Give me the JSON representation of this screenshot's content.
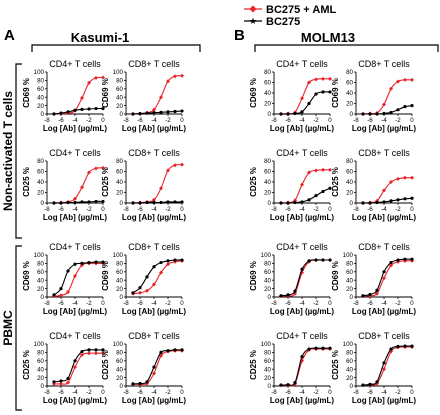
{
  "figure": {
    "panel_a": {
      "letter": "A",
      "title": "Kasumi-1"
    },
    "panel_b": {
      "letter": "B",
      "title": "MOLM13"
    },
    "row_groups": [
      {
        "label": "Non-activated T cells"
      },
      {
        "label": "PBMC"
      }
    ],
    "legend": [
      {
        "label": "BC275 + AML",
        "color": "#e8242b",
        "marker": "diamond"
      },
      {
        "label": "BC275",
        "color": "#000000",
        "marker": "star"
      }
    ]
  },
  "chart_data": [
    {
      "type": "line",
      "panel": "A",
      "row": 1,
      "col": 1,
      "title": "CD4+ T cells",
      "ylabel": "CD69 %",
      "xlabel": "Log [Ab] (µg/mL)",
      "xlim": [
        -8,
        0
      ],
      "ylim": [
        0,
        100
      ],
      "xticks": [
        -8,
        -6,
        -4,
        -2,
        0
      ],
      "yticks": [
        0,
        20,
        40,
        60,
        80,
        100
      ],
      "series": [
        {
          "name": "BC275 + AML",
          "x": [
            -7,
            -6,
            -5,
            -4,
            -3,
            -2,
            -1,
            0
          ],
          "y": [
            0,
            1,
            2,
            8,
            38,
            74,
            86,
            87
          ]
        },
        {
          "name": "BC275",
          "x": [
            -7,
            -6,
            -5,
            -4,
            -3,
            -2,
            -1,
            0
          ],
          "y": [
            0,
            2,
            5,
            9,
            11,
            12,
            13,
            13
          ]
        }
      ]
    },
    {
      "type": "line",
      "panel": "A",
      "row": 1,
      "col": 2,
      "title": "CD8+ T cells",
      "ylabel": "CD69 %",
      "xlabel": "Log [Ab] (µg/mL)",
      "xlim": [
        -8,
        0
      ],
      "ylim": [
        0,
        100
      ],
      "xticks": [
        -8,
        -6,
        -4,
        -2,
        0
      ],
      "yticks": [
        0,
        20,
        40,
        60,
        80,
        100
      ],
      "series": [
        {
          "name": "BC275 + AML",
          "x": [
            -7,
            -6,
            -5,
            -4,
            -3,
            -2,
            -1,
            0
          ],
          "y": [
            0,
            1,
            3,
            10,
            40,
            78,
            90,
            91
          ]
        },
        {
          "name": "BC275",
          "x": [
            -7,
            -6,
            -5,
            -4,
            -3,
            -2,
            -1,
            0
          ],
          "y": [
            0,
            1,
            2,
            3,
            4,
            5,
            6,
            7
          ]
        }
      ]
    },
    {
      "type": "line",
      "panel": "A",
      "row": 2,
      "col": 1,
      "title": "CD4+ T cells",
      "ylabel": "CD25 %",
      "xlabel": "Log [Ab] (µg/mL)",
      "xlim": [
        -8,
        0
      ],
      "ylim": [
        0,
        80
      ],
      "xticks": [
        -8,
        -6,
        -4,
        -2,
        0
      ],
      "yticks": [
        0,
        20,
        40,
        60,
        80
      ],
      "series": [
        {
          "name": "BC275 + AML",
          "x": [
            -7,
            -6,
            -5,
            -4,
            -3,
            -2,
            -1,
            0
          ],
          "y": [
            0,
            1,
            2,
            8,
            30,
            58,
            66,
            67
          ]
        },
        {
          "name": "BC275",
          "x": [
            -7,
            -6,
            -5,
            -4,
            -3,
            -2,
            -1,
            0
          ],
          "y": [
            0,
            0,
            1,
            1,
            2,
            2,
            3,
            3
          ]
        }
      ]
    },
    {
      "type": "line",
      "panel": "A",
      "row": 2,
      "col": 2,
      "title": "CD8+ T cells",
      "ylabel": "CD25 %",
      "xlabel": "Log [Ab] (µg/mL)",
      "xlim": [
        -8,
        0
      ],
      "ylim": [
        0,
        80
      ],
      "xticks": [
        -8,
        -6,
        -4,
        -2,
        0
      ],
      "yticks": [
        0,
        20,
        40,
        60,
        80
      ],
      "series": [
        {
          "name": "BC275 + AML",
          "x": [
            -7,
            -6,
            -5,
            -4,
            -3,
            -2,
            -1,
            0
          ],
          "y": [
            0,
            1,
            2,
            6,
            28,
            62,
            72,
            73
          ]
        },
        {
          "name": "BC275",
          "x": [
            -7,
            -6,
            -5,
            -4,
            -3,
            -2,
            -1,
            0
          ],
          "y": [
            0,
            0,
            1,
            1,
            1,
            2,
            2,
            2
          ]
        }
      ]
    },
    {
      "type": "line",
      "panel": "A",
      "row": 3,
      "col": 1,
      "title": "CD4+ T cells",
      "ylabel": "CD69 %",
      "xlabel": "Log [Ab] (µg/mL)",
      "xlim": [
        -8,
        0
      ],
      "ylim": [
        0,
        100
      ],
      "xticks": [
        -8,
        -6,
        -4,
        -2,
        0
      ],
      "yticks": [
        0,
        20,
        40,
        60,
        80,
        100
      ],
      "series": [
        {
          "name": "BC275 + AML",
          "x": [
            -7,
            -6,
            -5,
            -4,
            -3,
            -2,
            -1,
            0
          ],
          "y": [
            2,
            4,
            12,
            50,
            76,
            80,
            80,
            80
          ]
        },
        {
          "name": "BC275",
          "x": [
            -7,
            -6,
            -5,
            -4,
            -3,
            -2,
            -1,
            0
          ],
          "y": [
            5,
            20,
            62,
            78,
            80,
            82,
            83,
            83
          ]
        }
      ]
    },
    {
      "type": "line",
      "panel": "A",
      "row": 3,
      "col": 2,
      "title": "CD8+ T cells",
      "ylabel": "CD69 %",
      "xlabel": "Log [Ab] (µg/mL)",
      "xlim": [
        -8,
        0
      ],
      "ylim": [
        0,
        100
      ],
      "xticks": [
        -8,
        -6,
        -4,
        -2,
        0
      ],
      "yticks": [
        0,
        20,
        40,
        60,
        80,
        100
      ],
      "series": [
        {
          "name": "BC275 + AML",
          "x": [
            -7,
            -6,
            -5,
            -4,
            -3,
            -2,
            -1,
            0
          ],
          "y": [
            8,
            10,
            15,
            30,
            58,
            78,
            84,
            86
          ]
        },
        {
          "name": "BC275",
          "x": [
            -7,
            -6,
            -5,
            -4,
            -3,
            -2,
            -1,
            0
          ],
          "y": [
            10,
            22,
            48,
            72,
            82,
            86,
            88,
            88
          ]
        }
      ]
    },
    {
      "type": "line",
      "panel": "A",
      "row": 4,
      "col": 1,
      "title": "CD4+ T cells",
      "ylabel": "CD25 %",
      "xlabel": "Log [Ab] (µg/mL)",
      "xlim": [
        -8,
        0
      ],
      "ylim": [
        0,
        100
      ],
      "xticks": [
        -8,
        -6,
        -4,
        -2,
        0
      ],
      "yticks": [
        0,
        20,
        40,
        60,
        80,
        100
      ],
      "series": [
        {
          "name": "BC275 + AML",
          "x": [
            -7,
            -6,
            -5,
            -4,
            -3,
            -2,
            -1,
            0
          ],
          "y": [
            5,
            5,
            8,
            45,
            74,
            78,
            78,
            78
          ]
        },
        {
          "name": "BC275",
          "x": [
            -7,
            -6,
            -5,
            -4,
            -3,
            -2,
            -1,
            0
          ],
          "y": [
            10,
            12,
            18,
            60,
            82,
            86,
            86,
            86
          ]
        }
      ]
    },
    {
      "type": "line",
      "panel": "A",
      "row": 4,
      "col": 2,
      "title": "CD8+ T cells",
      "ylabel": "CD25 %",
      "xlabel": "Log [Ab] (µg/mL)",
      "xlim": [
        -8,
        0
      ],
      "ylim": [
        0,
        100
      ],
      "xticks": [
        -8,
        -6,
        -4,
        -2,
        0
      ],
      "yticks": [
        0,
        20,
        40,
        60,
        80,
        100
      ],
      "series": [
        {
          "name": "BC275 + AML",
          "x": [
            -7,
            -6,
            -5,
            -4,
            -3,
            -2,
            -1,
            0
          ],
          "y": [
            4,
            4,
            6,
            30,
            72,
            82,
            84,
            84
          ]
        },
        {
          "name": "BC275",
          "x": [
            -7,
            -6,
            -5,
            -4,
            -3,
            -2,
            -1,
            0
          ],
          "y": [
            5,
            6,
            10,
            45,
            80,
            84,
            86,
            86
          ]
        }
      ]
    },
    {
      "type": "line",
      "panel": "B",
      "row": 1,
      "col": 1,
      "title": "CD4+ T cells",
      "ylabel": "CD69 %",
      "xlabel": "Log [Ab] (µg/mL)",
      "xlim": [
        -8,
        0
      ],
      "ylim": [
        0,
        80
      ],
      "xticks": [
        -8,
        -6,
        -4,
        -2,
        0
      ],
      "yticks": [
        0,
        20,
        40,
        60,
        80
      ],
      "series": [
        {
          "name": "BC275 + AML",
          "x": [
            -7,
            -6,
            -5,
            -4,
            -3,
            -2,
            -1,
            0
          ],
          "y": [
            0,
            1,
            3,
            30,
            60,
            66,
            67,
            67
          ]
        },
        {
          "name": "BC275",
          "x": [
            -7,
            -6,
            -5,
            -4,
            -3,
            -2,
            -1,
            0
          ],
          "y": [
            0,
            0,
            1,
            4,
            20,
            38,
            42,
            42
          ]
        }
      ]
    },
    {
      "type": "line",
      "panel": "B",
      "row": 1,
      "col": 2,
      "title": "CD8+ T cells",
      "ylabel": "CD69 %",
      "xlabel": "Log [Ab] (µg/mL)",
      "xlim": [
        -8,
        0
      ],
      "ylim": [
        0,
        80
      ],
      "xticks": [
        -8,
        -6,
        -4,
        -2,
        0
      ],
      "yticks": [
        0,
        20,
        40,
        60,
        80
      ],
      "series": [
        {
          "name": "BC275 + AML",
          "x": [
            -7,
            -6,
            -5,
            -4,
            -3,
            -2,
            -1,
            0
          ],
          "y": [
            0,
            1,
            2,
            18,
            48,
            62,
            65,
            65
          ]
        },
        {
          "name": "BC275",
          "x": [
            -7,
            -6,
            -5,
            -4,
            -3,
            -2,
            -1,
            0
          ],
          "y": [
            0,
            0,
            0,
            1,
            3,
            8,
            14,
            16
          ]
        }
      ]
    },
    {
      "type": "line",
      "panel": "B",
      "row": 2,
      "col": 1,
      "title": "CD4+ T cells",
      "ylabel": "CD25 %",
      "xlabel": "Log [Ab] (µg/mL)",
      "xlim": [
        -8,
        0
      ],
      "ylim": [
        0,
        80
      ],
      "xticks": [
        -8,
        -6,
        -4,
        -2,
        0
      ],
      "yticks": [
        0,
        20,
        40,
        60,
        80
      ],
      "series": [
        {
          "name": "BC275 + AML",
          "x": [
            -7,
            -6,
            -5,
            -4,
            -3,
            -2,
            -1,
            0
          ],
          "y": [
            0,
            1,
            5,
            35,
            58,
            62,
            63,
            63
          ]
        },
        {
          "name": "BC275",
          "x": [
            -7,
            -6,
            -5,
            -4,
            -3,
            -2,
            -1,
            0
          ],
          "y": [
            0,
            0,
            1,
            2,
            6,
            14,
            22,
            28
          ]
        }
      ]
    },
    {
      "type": "line",
      "panel": "B",
      "row": 2,
      "col": 2,
      "title": "CD8+ T cells",
      "ylabel": "CD25 %",
      "xlabel": "Log [Ab] (µg/mL)",
      "xlim": [
        -8,
        0
      ],
      "ylim": [
        0,
        80
      ],
      "xticks": [
        -8,
        -6,
        -4,
        -2,
        0
      ],
      "yticks": [
        0,
        20,
        40,
        60,
        80
      ],
      "series": [
        {
          "name": "BC275 + AML",
          "x": [
            -7,
            -6,
            -5,
            -4,
            -3,
            -2,
            -1,
            0
          ],
          "y": [
            0,
            1,
            4,
            24,
            40,
            46,
            48,
            48
          ]
        },
        {
          "name": "BC275",
          "x": [
            -7,
            -6,
            -5,
            -4,
            -3,
            -2,
            -1,
            0
          ],
          "y": [
            0,
            0,
            1,
            2,
            4,
            6,
            8,
            9
          ]
        }
      ]
    },
    {
      "type": "line",
      "panel": "B",
      "row": 3,
      "col": 1,
      "title": "CD4+ T cells",
      "ylabel": "CD69 %",
      "xlabel": "Log [Ab] (µg/mL)",
      "xlim": [
        -8,
        0
      ],
      "ylim": [
        0,
        100
      ],
      "xticks": [
        -8,
        -6,
        -4,
        -2,
        0
      ],
      "yticks": [
        0,
        20,
        40,
        60,
        80,
        100
      ],
      "series": [
        {
          "name": "BC275 + AML",
          "x": [
            -7,
            -6,
            -5,
            -4,
            -3,
            -2,
            -1,
            0
          ],
          "y": [
            2,
            3,
            8,
            58,
            84,
            88,
            88,
            88
          ]
        },
        {
          "name": "BC275",
          "x": [
            -7,
            -6,
            -5,
            -4,
            -3,
            -2,
            -1,
            0
          ],
          "y": [
            3,
            5,
            14,
            66,
            86,
            88,
            88,
            88
          ]
        }
      ]
    },
    {
      "type": "line",
      "panel": "B",
      "row": 3,
      "col": 2,
      "title": "CD8+ T cells",
      "ylabel": "CD69 %",
      "xlabel": "Log [Ab] (µg/mL)",
      "xlim": [
        -8,
        0
      ],
      "ylim": [
        0,
        100
      ],
      "xticks": [
        -8,
        -6,
        -4,
        -2,
        0
      ],
      "yticks": [
        0,
        20,
        40,
        60,
        80,
        100
      ],
      "series": [
        {
          "name": "BC275 + AML",
          "x": [
            -7,
            -6,
            -5,
            -4,
            -3,
            -2,
            -1,
            0
          ],
          "y": [
            2,
            3,
            8,
            45,
            75,
            84,
            86,
            86
          ]
        },
        {
          "name": "BC275",
          "x": [
            -7,
            -6,
            -5,
            -4,
            -3,
            -2,
            -1,
            0
          ],
          "y": [
            3,
            6,
            16,
            60,
            82,
            88,
            90,
            90
          ]
        }
      ]
    },
    {
      "type": "line",
      "panel": "B",
      "row": 4,
      "col": 1,
      "title": "CD4+ T cells",
      "ylabel": "CD25 %",
      "xlabel": "Log [Ab] (µg/mL)",
      "xlim": [
        -8,
        0
      ],
      "ylim": [
        0,
        100
      ],
      "xticks": [
        -8,
        -6,
        -4,
        -2,
        0
      ],
      "yticks": [
        0,
        20,
        40,
        60,
        80,
        100
      ],
      "series": [
        {
          "name": "BC275 + AML",
          "x": [
            -7,
            -6,
            -5,
            -4,
            -3,
            -2,
            -1,
            0
          ],
          "y": [
            2,
            2,
            5,
            60,
            86,
            88,
            88,
            88
          ]
        },
        {
          "name": "BC275",
          "x": [
            -7,
            -6,
            -5,
            -4,
            -3,
            -2,
            -1,
            0
          ],
          "y": [
            2,
            3,
            8,
            70,
            88,
            90,
            90,
            90
          ]
        }
      ]
    },
    {
      "type": "line",
      "panel": "B",
      "row": 4,
      "col": 2,
      "title": "CD8+ T cells",
      "ylabel": "CD25 %",
      "xlabel": "Log [Ab] (µg/mL)",
      "xlim": [
        -8,
        0
      ],
      "ylim": [
        0,
        100
      ],
      "xticks": [
        -8,
        -6,
        -4,
        -2,
        0
      ],
      "yticks": [
        0,
        20,
        40,
        60,
        80,
        100
      ],
      "series": [
        {
          "name": "BC275 + AML",
          "x": [
            -7,
            -6,
            -5,
            -4,
            -3,
            -2,
            -1,
            0
          ],
          "y": [
            2,
            3,
            6,
            40,
            82,
            92,
            93,
            93
          ]
        },
        {
          "name": "BC275",
          "x": [
            -7,
            -6,
            -5,
            -4,
            -3,
            -2,
            -1,
            0
          ],
          "y": [
            2,
            4,
            10,
            55,
            88,
            94,
            95,
            95
          ]
        }
      ]
    }
  ]
}
